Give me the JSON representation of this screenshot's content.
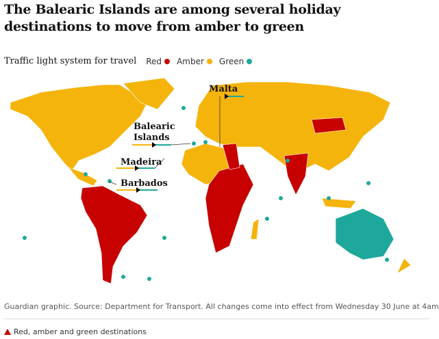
{
  "title": "The Balearic Islands are among several holiday destinations to move from amber to green",
  "legend": {
    "title": "Traffic light system for travel",
    "items": [
      "Red",
      "Amber",
      "Green"
    ]
  },
  "labels": [
    {
      "lines": [
        "Malta"
      ]
    },
    {
      "lines": [
        "Balearic",
        "Islands"
      ]
    },
    {
      "lines": [
        "Madeira"
      ]
    },
    {
      "lines": [
        "Barbados"
      ]
    }
  ],
  "source": "Guardian graphic. Source: Department for Transport. All changes come into effect from Wednesday 30 June at 4am",
  "caption": "Red, amber and green destinations"
}
